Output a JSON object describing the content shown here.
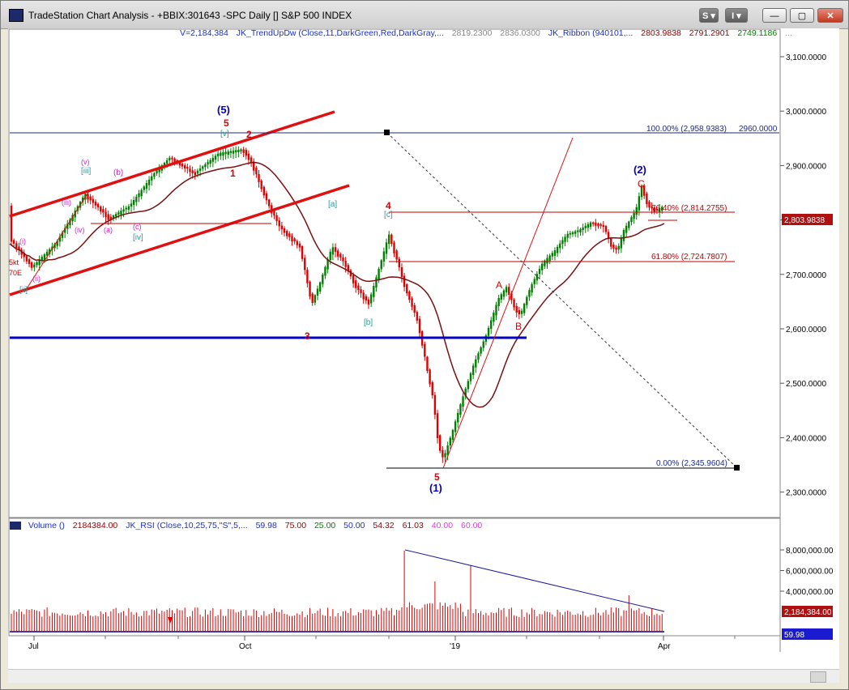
{
  "window": {
    "title": "TradeStation Chart Analysis - +BBIX:301643 -SPC Daily [] S&P 500 INDEX",
    "btn_s": "S",
    "btn_i": "I",
    "btn_min": "—",
    "btn_max": "▢",
    "btn_close": "✕"
  },
  "price_header": {
    "volume": "V=2,184,384",
    "study1": "JK_TrendUpDw (Close,11,DarkGreen,Red,DarkGray,...",
    "v1": "2819.2300",
    "v2": "2836.0300",
    "study2": "JK_Ribbon (940101,...",
    "v3": "2803.9838",
    "v4": "2791.2901",
    "v5": "2749.1186",
    "v6": "..."
  },
  "vol_header": {
    "study1": "Volume ()",
    "v1": "2184384.00",
    "study2": "JK_RSI (Close,10,25,75,\"S\",5,...",
    "v2": "59.98",
    "v3": "75.00",
    "v4": "25.00",
    "v5": "50.00",
    "v6": "54.32",
    "v7": "61.03",
    "v8": "40.00",
    "v9": "60.00"
  },
  "price_axis": [
    "3,100.0000",
    "3,000.0000",
    "2,900.0000",
    "2,800.0000",
    "2,700.0000",
    "2,600.0000",
    "2,500.0000",
    "2,400.0000",
    "2,300.0000"
  ],
  "price_marker": "2,803.9838",
  "volume_axis": [
    "8,000,000.00",
    "6,000,000.00",
    "4,000,000.00"
  ],
  "volume_marker": "2,184,384.00",
  "rsi_marker": "59.98",
  "x_axis": [
    "Jul",
    "Oct",
    "'19",
    "Apr"
  ],
  "fib": {
    "f100": "100.00% (2,958.9383)",
    "f100_val": "2960.0000",
    "f764": "76.40% (2,814.2755)",
    "f618": "61.80% (2,724.7807)",
    "f0": "0.00% (2,345.9604)"
  },
  "waves": {
    "big5": "(5)",
    "big1": "(1)",
    "big2": "(2)",
    "r5top": "5",
    "r5bot": "5",
    "r2": "2",
    "r1": "1",
    "r3": "3",
    "r4": "4",
    "rA": "A",
    "rB": "B",
    "rC": "C",
    "iii": "[iii]",
    "v_br": "[v]",
    "iv_br": "[iv]",
    "ii_br": "[ii]",
    "a_br": "[a]",
    "b_br": "[b]",
    "c_br": "[c]",
    "b_p": "(b)",
    "c_p": "(c)",
    "a_p": "(a)",
    "v_p": "(v)",
    "iii_p": "(iii)",
    "iv_p": "(iv)",
    "i_p": "(i)",
    "ii_p": "(ii)",
    "cut1": "5kt",
    "cut2": "70E"
  },
  "colors": {
    "price_up": "#008000",
    "price_down": "#e00000",
    "fib": "#c00000",
    "wave_blue": "#0000c8",
    "wave_red": "#e00000",
    "ribbon": "#7a1010",
    "channel": "#e01010",
    "support": "#0000c0",
    "volume": "#e00000"
  }
}
